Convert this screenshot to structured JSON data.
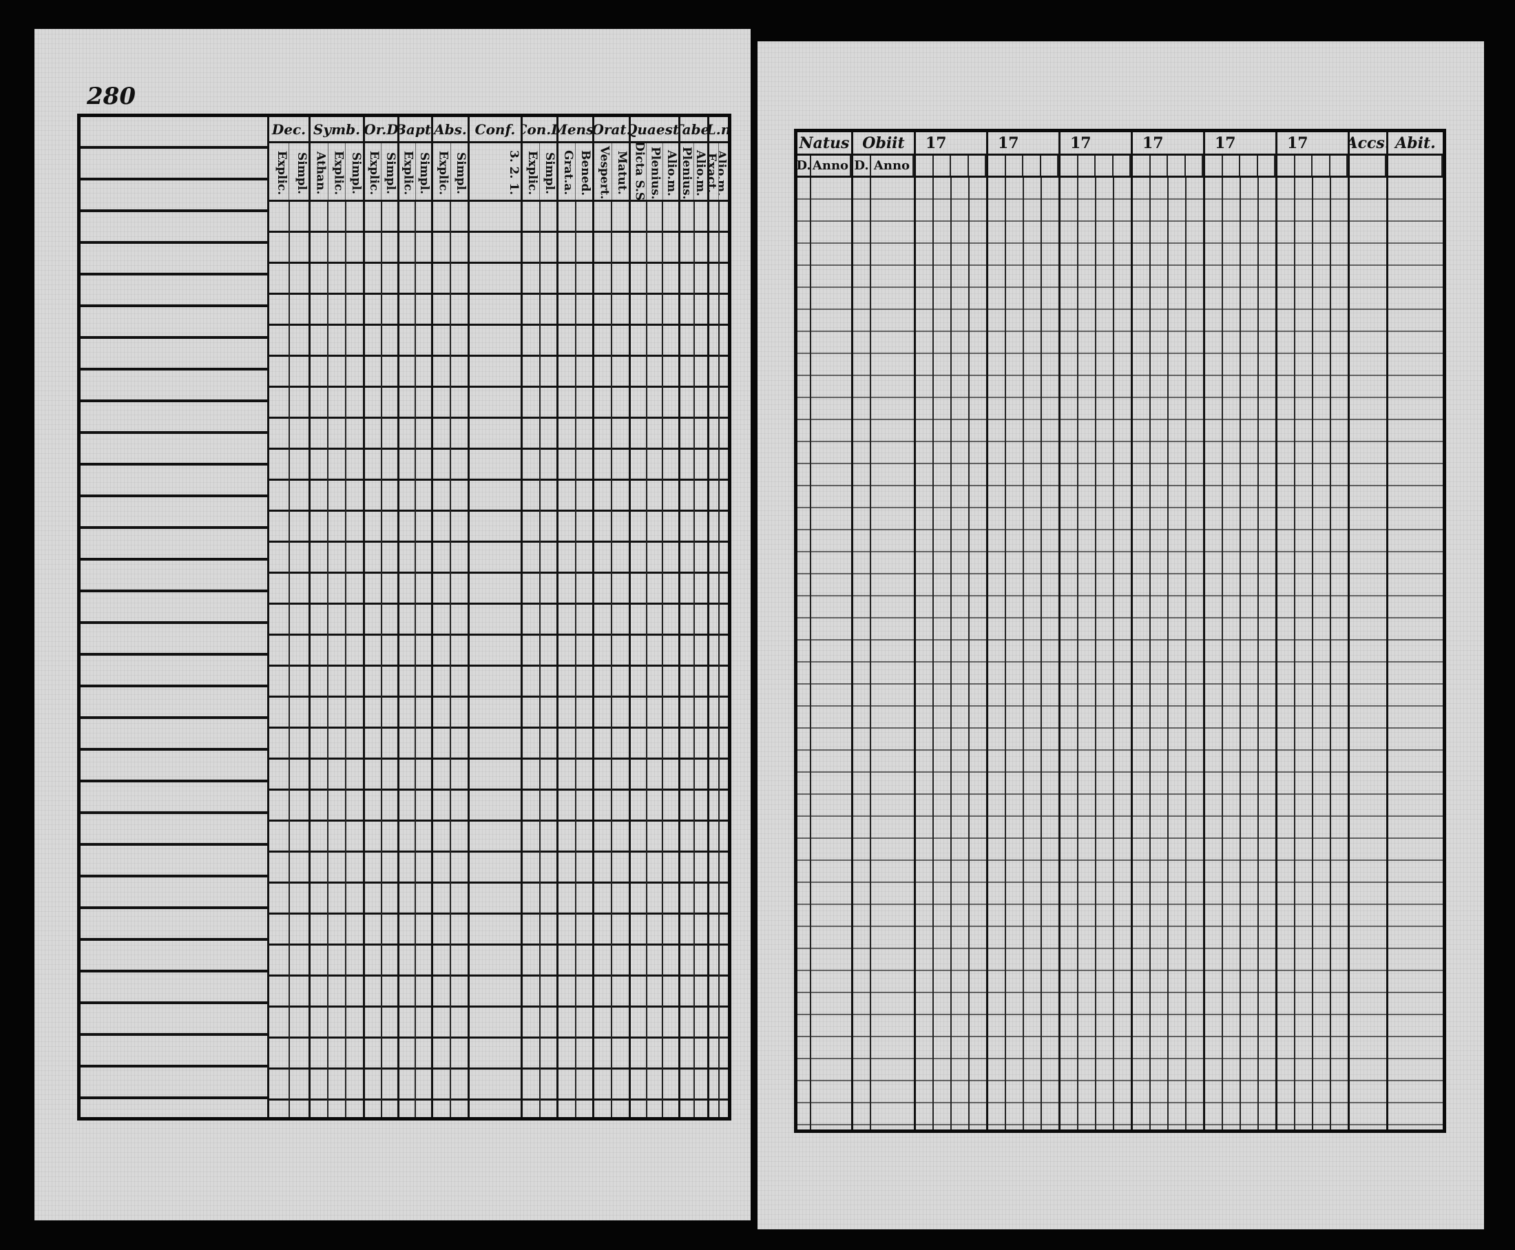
{
  "left_page": {
    "page_number": "280",
    "columns": [
      {
        "label": "Dec.",
        "subs": [
          "Explic.",
          "Simpl."
        ]
      },
      {
        "label": "Symb.",
        "subs": [
          "Athan.",
          "Explic.",
          "Simpl."
        ]
      },
      {
        "label": "Or.D",
        "subs": [
          "Explic.",
          "Simpl."
        ]
      },
      {
        "label": "Bapt.",
        "subs": [
          "Explic.",
          "Simpl."
        ]
      },
      {
        "label": "Abs.",
        "subs": [
          "Explic.",
          "Simpl."
        ]
      },
      {
        "label": "Conf.",
        "subs": [
          "3. 2. 1."
        ]
      },
      {
        "label": "Con.D",
        "subs": [
          "Explic.",
          "Simpl."
        ]
      },
      {
        "label": "Mens.",
        "subs": [
          "Grat.a.",
          "Bened."
        ]
      },
      {
        "label": "Orat.",
        "subs": [
          "Vespert.",
          "Matut."
        ]
      },
      {
        "label": "Quaest.",
        "subs": [
          "Dicta S.S.",
          "Plenius.",
          "Alio.m."
        ]
      },
      {
        "label": "Tabe.",
        "subs": [
          "Plenius.",
          "Alio.m."
        ]
      },
      {
        "label": "L.n",
        "subs": [
          "Exact.",
          "Alio.m."
        ]
      }
    ]
  },
  "right_page": {
    "columns": [
      {
        "label": "Natus",
        "subs": [
          "D.",
          "Anno"
        ]
      },
      {
        "label": "Obiit",
        "subs": [
          "D.",
          "Anno"
        ]
      },
      {
        "label": "17",
        "subs": [
          "",
          "",
          "",
          ""
        ]
      },
      {
        "label": "17",
        "subs": [
          "",
          "",
          "",
          ""
        ]
      },
      {
        "label": "17",
        "subs": [
          "",
          "",
          "",
          ""
        ]
      },
      {
        "label": "17",
        "subs": [
          "",
          "",
          "",
          ""
        ]
      },
      {
        "label": "17",
        "subs": [
          "",
          "",
          "",
          ""
        ]
      },
      {
        "label": "17",
        "subs": [
          "",
          "",
          "",
          ""
        ]
      },
      {
        "label": "Accs.",
        "subs": [
          ""
        ]
      },
      {
        "label": "Abit.",
        "subs": [
          ""
        ]
      }
    ]
  }
}
